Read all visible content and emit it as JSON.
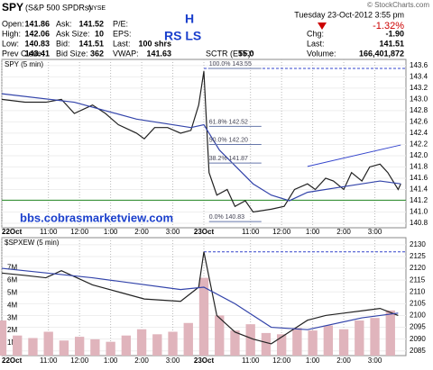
{
  "header": {
    "symbol": "SPY",
    "name": "(S&P 500 SPDRs)",
    "exchange": "NYSE",
    "credit": "© StockCharts.com",
    "col1": [
      [
        "Open:",
        "141.86"
      ],
      [
        "High:",
        "142.06"
      ],
      [
        "Low:",
        "140.83"
      ],
      [
        "Prev Close:",
        "143.41"
      ]
    ],
    "col2": [
      [
        "Ask:",
        "141.52"
      ],
      [
        "Ask Size:",
        "10"
      ],
      [
        "Bid:",
        "141.51"
      ],
      [
        "Bid Size:",
        "362"
      ]
    ],
    "col3": [
      [
        "P/E:",
        ""
      ],
      [
        "EPS:",
        ""
      ],
      [
        "Last:",
        "100 shrs"
      ],
      [
        "VWAP:",
        "141.63"
      ]
    ],
    "sctr_label": "SCTR (ETF):",
    "sctr": "55.0",
    "date": "Tuesday 23-Oct-2012 3:55 pm",
    "pct": "-1.32%",
    "col4": [
      [
        "Chg:",
        "-1.90"
      ],
      [
        "Last:",
        "141.51"
      ],
      [
        "Volume:",
        "166,401,872"
      ]
    ]
  },
  "notes": {
    "h": "H",
    "rsls": "RS LS"
  },
  "watermark": "bbs.cobrasmarketview.com",
  "chart_data": [
    {
      "type": "line",
      "title": "SPY (5 min)",
      "xlim": [
        0,
        156
      ],
      "xticks": [
        {
          "value": 0,
          "label": "22Oct"
        },
        {
          "value": 18,
          "label": "11:00"
        },
        {
          "value": 30,
          "label": "12:00"
        },
        {
          "value": 42,
          "label": "1:00"
        },
        {
          "value": 54,
          "label": "2:00"
        },
        {
          "value": 66,
          "label": "3:00"
        },
        {
          "value": 78,
          "label": "23Oct"
        },
        {
          "value": 96,
          "label": "11:00"
        },
        {
          "value": 108,
          "label": "12:00"
        },
        {
          "value": 120,
          "label": "1:00"
        },
        {
          "value": 132,
          "label": "2:00"
        },
        {
          "value": 144,
          "label": "3:00"
        }
      ],
      "ylim": [
        140.72,
        143.71
      ],
      "yticks": [
        143.6,
        143.4,
        143.2,
        {
          "value": 143,
          "label": "143.0"
        },
        142.8,
        142.6,
        142.4,
        142.2,
        {
          "value": 142,
          "label": "142.0"
        },
        141.8,
        141.6,
        141.4,
        141.2,
        {
          "value": 141,
          "label": "141.0"
        },
        140.8
      ],
      "grid": true,
      "series": [
        {
          "color": "#222222",
          "x": [
            0,
            9,
            17,
            23,
            28,
            35,
            40,
            45,
            52,
            55,
            59,
            64,
            69,
            73,
            76,
            78,
            80,
            83,
            87,
            90,
            94,
            97,
            104,
            109,
            113,
            118,
            121,
            125,
            128,
            132,
            135,
            139,
            142,
            146,
            149,
            153,
            154
          ],
          "values": [
            143.0,
            142.95,
            142.95,
            143.0,
            142.75,
            142.9,
            142.75,
            142.55,
            142.4,
            142.3,
            142.5,
            142.5,
            142.4,
            142.45,
            142.9,
            143.5,
            141.7,
            141.3,
            141.4,
            141.1,
            141.2,
            141.0,
            141.05,
            141.1,
            141.4,
            141.5,
            141.4,
            141.6,
            141.55,
            141.4,
            141.7,
            141.55,
            141.8,
            141.85,
            141.7,
            141.4,
            141.5
          ]
        },
        {
          "color": "#3344aa",
          "x": [
            0,
            28,
            52,
            73,
            78,
            84,
            97,
            104,
            111,
            118,
            132,
            146,
            154
          ],
          "values": [
            143.1,
            142.95,
            142.65,
            142.5,
            142.55,
            142.1,
            141.5,
            141.3,
            141.2,
            141.35,
            141.45,
            141.55,
            141.5
          ]
        }
      ],
      "hlines": [
        {
          "value": 143.55,
          "start": 78,
          "color": "#3344cc",
          "dashed": true
        },
        {
          "value": 141.21,
          "start": 0,
          "color": "#228822",
          "dashed": false
        }
      ],
      "trendlines": [
        {
          "x": [
            118,
            154
          ],
          "values": [
            141.81,
            142.19
          ],
          "color": "#3344cc"
        }
      ],
      "annotations": [
        {
          "label": "100.0% 143.55",
          "value": 143.55
        },
        {
          "label": "61.8% 142.52",
          "value": 142.52
        },
        {
          "label": "50.0% 142.20",
          "value": 142.2
        },
        {
          "label": "38.2% 141.87",
          "value": 141.87
        },
        {
          "label": "0.0% 140.83",
          "value": 140.83
        }
      ],
      "annotation_start": 80
    },
    {
      "type": "line",
      "title": "$SPXEW (5 min)",
      "xlim": [
        0,
        156
      ],
      "xticks": [
        {
          "value": 0,
          "label": "22Oct"
        },
        {
          "value": 18,
          "label": "11:00"
        },
        {
          "value": 30,
          "label": "12:00"
        },
        {
          "value": 42,
          "label": "1:00"
        },
        {
          "value": 54,
          "label": "2:00"
        },
        {
          "value": 66,
          "label": "3:00"
        },
        {
          "value": 78,
          "label": "23Oct"
        },
        {
          "value": 96,
          "label": "11:00"
        },
        {
          "value": 108,
          "label": "12:00"
        },
        {
          "value": 120,
          "label": "1:00"
        },
        {
          "value": 132,
          "label": "2:00"
        },
        {
          "value": 144,
          "label": "3:00"
        }
      ],
      "ylim": [
        2083,
        2133
      ],
      "yticks": [
        2130,
        2125,
        2120,
        2115,
        2110,
        2105,
        2100,
        2095,
        2090,
        2085
      ],
      "y2lim": [
        0,
        9400000
      ],
      "y2ticks": [
        {
          "value": 7000000,
          "label": "7M"
        },
        {
          "value": 6000000,
          "label": "6M"
        },
        {
          "value": 5000000,
          "label": "5M"
        },
        {
          "value": 4000000,
          "label": "4M"
        },
        {
          "value": 3000000,
          "label": "3M"
        },
        {
          "value": 2000000,
          "label": "2M"
        },
        {
          "value": 1000000,
          "label": "1M"
        }
      ],
      "grid": true,
      "series": [
        {
          "type": "bar",
          "axis": "y2",
          "color": "#e0b4bc",
          "x": [
            0,
            6,
            12,
            18,
            24,
            30,
            36,
            42,
            48,
            54,
            60,
            66,
            72,
            78,
            84,
            90,
            96,
            102,
            108,
            114,
            120,
            126,
            132,
            138,
            144,
            150
          ],
          "values": [
            2800000,
            1600000,
            1400000,
            1900000,
            1200000,
            1500000,
            1300000,
            1100000,
            1600000,
            2100000,
            1700000,
            1900000,
            2600000,
            6200000,
            3200000,
            2000000,
            2500000,
            1800000,
            1700000,
            2200000,
            2000000,
            2400000,
            2100000,
            2800000,
            3000000,
            3600000
          ]
        },
        {
          "color": "#222222",
          "x": [
            0,
            9,
            17,
            23,
            35,
            45,
            55,
            69,
            76,
            78,
            83,
            90,
            97,
            104,
            111,
            118,
            125,
            132,
            139,
            146,
            153
          ],
          "values": [
            2118,
            2117,
            2116,
            2119,
            2113,
            2110,
            2107,
            2106,
            2112,
            2127,
            2100,
            2093,
            2090,
            2088,
            2093,
            2098,
            2100,
            2101,
            2102,
            2103,
            2100
          ]
        },
        {
          "color": "#3344aa",
          "x": [
            0,
            35,
            69,
            78,
            90,
            104,
            118,
            139,
            153
          ],
          "values": [
            2120,
            2116,
            2111,
            2112,
            2105,
            2095,
            2094,
            2099,
            2101
          ]
        }
      ],
      "hlines": [
        {
          "value": 2127,
          "start": 78,
          "color": "#3344cc",
          "dashed": true
        }
      ]
    }
  ]
}
